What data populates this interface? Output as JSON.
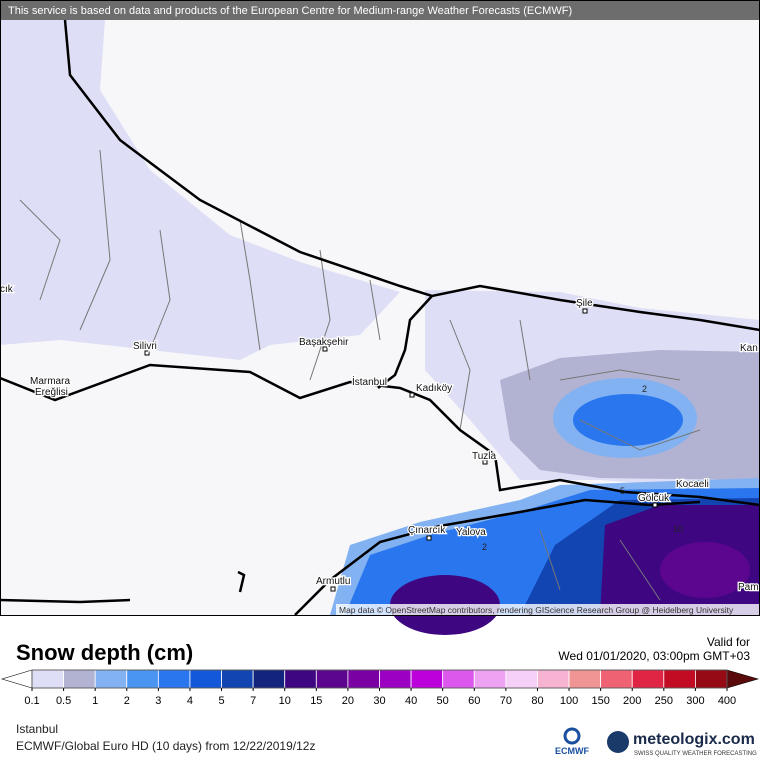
{
  "banner": "This service is based on data and products of the European Centre for Medium-range Weather Forecasts (ECMWF)",
  "places": {
    "silivri": "Silivri",
    "marmara": "Marmara",
    "eregli": "Ereğlisi",
    "basaksehir": "Başakşehir",
    "istanbul": "İstanbul",
    "kadikoy": "Kadıköy",
    "tuzla": "Tuzla",
    "sile": "Şile",
    "kocaeli": "Kocaeli",
    "golcuk": "Gölcük",
    "cinarcik": "Çınarcık",
    "yalova": "Yalova",
    "armutlu": "Armutlu",
    "kan": "Kan",
    "pam": "Pam",
    "cik": "cık"
  },
  "contour_labels": [
    2,
    2,
    5,
    10
  ],
  "attribution": "Map data © OpenStreetMap contributors, rendering GIScience Research Group @ Heidelberg University",
  "legend": {
    "title": "Snow depth (cm)",
    "ticks": [
      0.1,
      0.5,
      1,
      2,
      3,
      4,
      5,
      7,
      10,
      15,
      20,
      30,
      40,
      50,
      60,
      70,
      80,
      100,
      150,
      200,
      250,
      300,
      400
    ],
    "under_color": "#ffffff",
    "over_color": "#5a0a0a",
    "colors": [
      "#dedef6",
      "#b2b2d2",
      "#82b2f2",
      "#4a94f2",
      "#2a76ee",
      "#1258d8",
      "#1244b2",
      "#13247e",
      "#3e0680",
      "#5c0690",
      "#7a00a4",
      "#9c00c2",
      "#bc00dc",
      "#dc58ec",
      "#eea2f2",
      "#f6d0f6",
      "#f6b4d2",
      "#f09494",
      "#ee6274",
      "#e02444",
      "#c20c24",
      "#960a16"
    ]
  },
  "valid": {
    "label": "Valid for",
    "date": "Wed 01/01/2020, 03:00pm GMT+03"
  },
  "footer": {
    "location": "Istanbul",
    "model": "ECMWF/Global Euro HD (10 days) from 12/22/2019/12z",
    "ecmwf": "ECMWF",
    "brand": "meteologix.com",
    "tagline": "SWISS QUALITY WEATHER FORECASTING"
  }
}
